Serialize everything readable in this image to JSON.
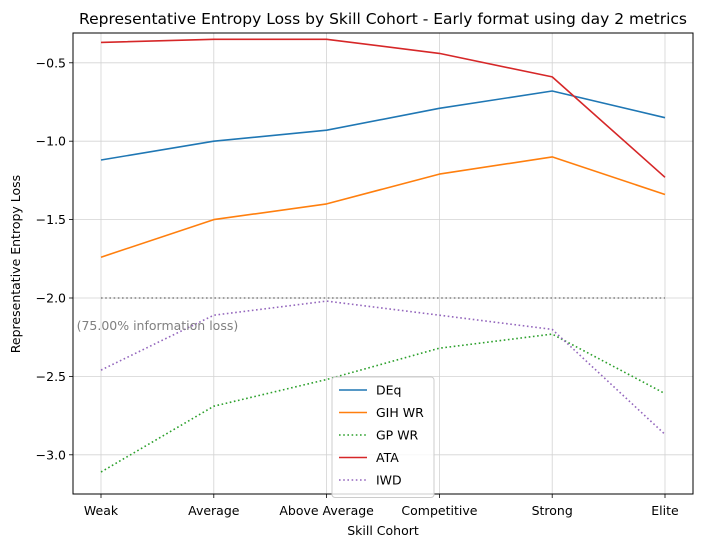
{
  "chart_data": {
    "type": "line",
    "title": "Representative Entropy Loss by Skill Cohort - Early format using day 2 metrics",
    "xlabel": "Skill Cohort",
    "ylabel": "Representative Entropy Loss",
    "categories": [
      "Weak",
      "Average",
      "Above Average",
      "Competitive",
      "Strong",
      "Elite"
    ],
    "ylim": [
      -3.25,
      -0.31
    ],
    "yticks": [
      -3.0,
      -2.5,
      -2.0,
      -1.5,
      -1.0,
      -0.5
    ],
    "ytick_labels": [
      "−3.0",
      "−2.5",
      "−2.0",
      "−1.5",
      "−1.0",
      "−0.5"
    ],
    "grid": true,
    "legend_position": "lower-center",
    "series": [
      {
        "name": "DEq",
        "color": "#1f77b4",
        "style": "solid",
        "in_legend": true,
        "values": [
          -1.12,
          -1.0,
          -0.93,
          -0.79,
          -0.68,
          -0.85
        ]
      },
      {
        "name": "GIH WR",
        "color": "#ff7f0e",
        "style": "solid",
        "in_legend": true,
        "values": [
          -1.74,
          -1.5,
          -1.4,
          -1.21,
          -1.1,
          -1.34
        ]
      },
      {
        "name": "GP WR",
        "color": "#2ca02c",
        "style": "dotted",
        "in_legend": true,
        "values": [
          -3.11,
          -2.69,
          -2.52,
          -2.32,
          -2.23,
          -2.61
        ]
      },
      {
        "name": "ATA",
        "color": "#d62728",
        "style": "solid",
        "in_legend": true,
        "values": [
          -0.37,
          -0.35,
          -0.35,
          -0.44,
          -0.59,
          -1.23
        ]
      },
      {
        "name": "IWD",
        "color": "#9467bd",
        "style": "dotted",
        "in_legend": true,
        "values": [
          -2.46,
          -2.11,
          -2.02,
          -2.11,
          -2.2,
          -2.87
        ]
      },
      {
        "name": "reference",
        "color": "#808080",
        "style": "dotted",
        "in_legend": false,
        "values": [
          -2.0,
          -2.0,
          -2.0,
          -2.0,
          -2.0,
          -2.0
        ]
      }
    ],
    "annotations": [
      {
        "text": "(75.00% information loss)",
        "x": 0.5,
        "y": -2.18,
        "color": "#808080"
      }
    ]
  }
}
